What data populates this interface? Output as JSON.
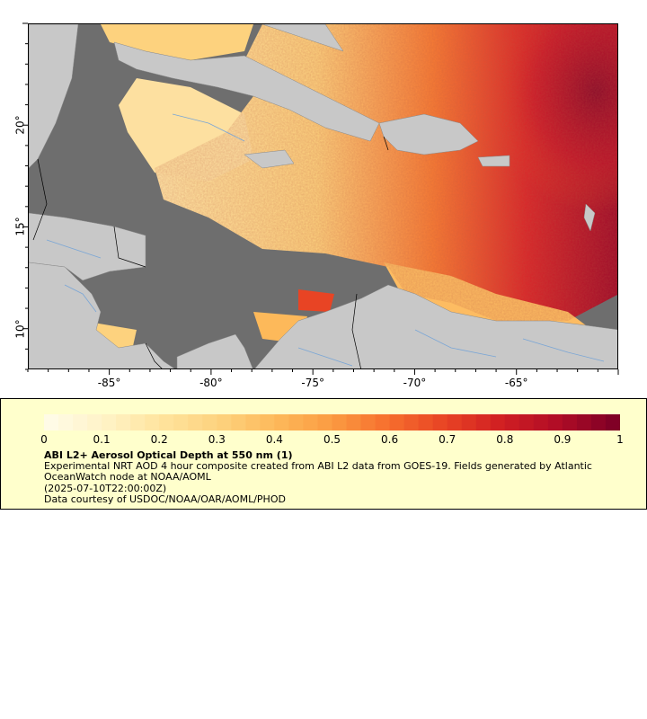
{
  "map": {
    "type": "aerosol-optical-depth-map",
    "region": "Caribbean",
    "lon_range": [
      -89,
      -60
    ],
    "lat_range": [
      8,
      25
    ],
    "colors": {
      "ocean_nodata": "#6e6e6e",
      "land": "#c8c8c8",
      "rivers": "#7aa6d6",
      "borders": "#000000"
    }
  },
  "axes": {
    "x_ticks": [
      "-85°",
      "-80°",
      "-75°",
      "-70°",
      "-65°"
    ],
    "x_tick_values": [
      -85,
      -80,
      -75,
      -70,
      -65
    ],
    "y_ticks": [
      "10°",
      "15°",
      "20°"
    ],
    "y_tick_values": [
      10,
      15,
      20
    ]
  },
  "colorbar": {
    "labels": [
      "0",
      "0.1",
      "0.2",
      "0.3",
      "0.4",
      "0.5",
      "0.6",
      "0.7",
      "0.8",
      "0.9",
      "1"
    ],
    "range": [
      0,
      1
    ],
    "stops": [
      "#fffbe6",
      "#fff2c4",
      "#ffe39c",
      "#fdd27e",
      "#fdb95a",
      "#fb9b42",
      "#f66e2e",
      "#e84424",
      "#d11f22",
      "#b10d26",
      "#800026"
    ]
  },
  "legend": {
    "title": "ABI L2+ Aerosol Optical Depth at 550 nm (1)",
    "description": "Experimental NRT AOD 4 hour composite created from ABI L2 data from GOES-19. Fields generated by Atlantic OceanWatch node at NOAA/AOML",
    "time": "(2025-07-10T22:00:00Z)",
    "credit": "Data courtesy of USDOC/NOAA/OAR/AOML/PHOD"
  }
}
